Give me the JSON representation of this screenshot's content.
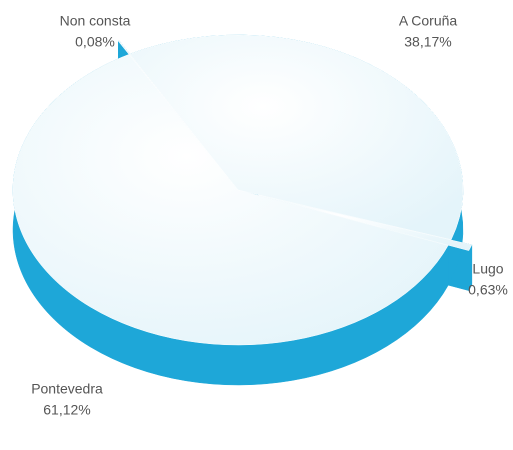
{
  "chart_data": {
    "type": "pie",
    "categories": [
      "Non consta",
      "A Coruña",
      "Lugo",
      "Pontevedra"
    ],
    "values": [
      0.08,
      38.17,
      0.63,
      61.12
    ],
    "value_labels": [
      "0,08%",
      "38,17%",
      "0,63%",
      "61,12%"
    ],
    "color": "#e4f4fa",
    "side_color": "#1ea7d8"
  }
}
